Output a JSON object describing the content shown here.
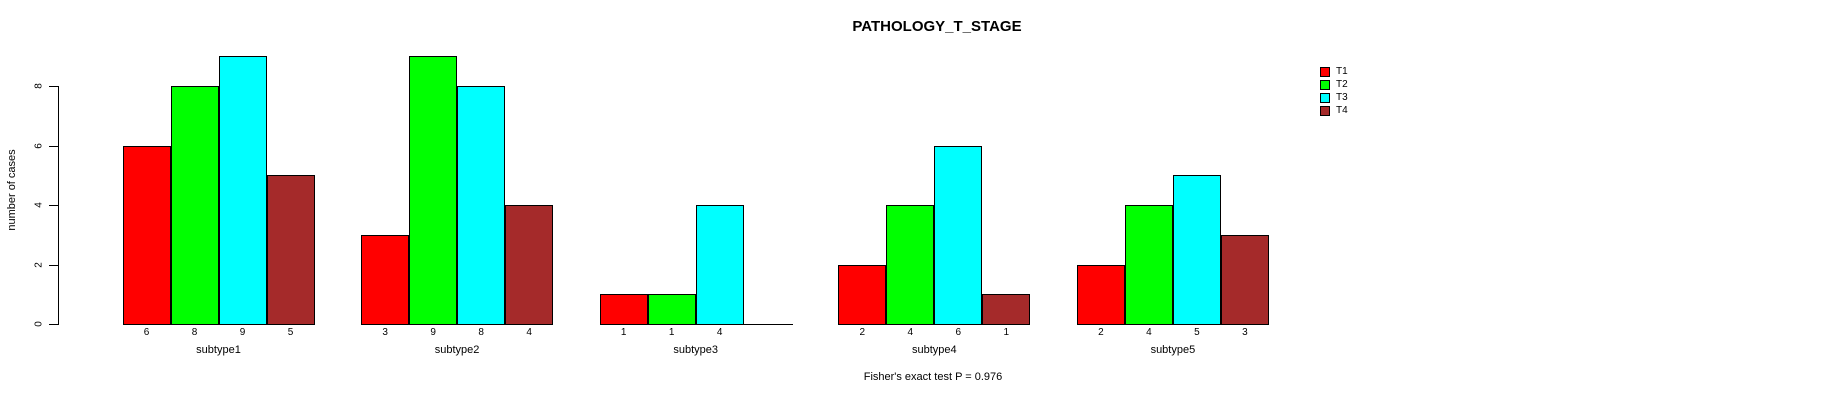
{
  "title": "PATHOLOGY_T_STAGE",
  "y_axis": {
    "label": "number of cases",
    "ticks": [
      0,
      2,
      4,
      6,
      8
    ]
  },
  "caption": "Fisher's exact test P = 0.976",
  "chart_data": {
    "type": "bar",
    "title": "PATHOLOGY_T_STAGE",
    "xlabel": "",
    "ylabel": "number of cases",
    "ylim": [
      0,
      9
    ],
    "yticks": [
      0,
      2,
      4,
      6,
      8
    ],
    "grid": false,
    "legend_position": "top-right-outside",
    "categories": [
      "subtype1",
      "subtype2",
      "subtype3",
      "subtype4",
      "subtype5"
    ],
    "series": [
      {
        "name": "T1",
        "color": "#ff0000",
        "values": [
          6,
          3,
          1,
          2,
          2
        ]
      },
      {
        "name": "T2",
        "color": "#00ff00",
        "values": [
          8,
          9,
          1,
          4,
          4
        ]
      },
      {
        "name": "T3",
        "color": "#00ffff",
        "values": [
          9,
          8,
          4,
          6,
          5
        ]
      },
      {
        "name": "T4",
        "color": "#a52a2a",
        "values": [
          5,
          4,
          0,
          1,
          3
        ]
      }
    ],
    "bar_value_labels": [
      [
        "6",
        "8",
        "9",
        "5"
      ],
      [
        "3",
        "9",
        "8",
        "4"
      ],
      [
        "1",
        "1",
        "4",
        ""
      ],
      [
        "2",
        "4",
        "6",
        "1"
      ],
      [
        "2",
        "4",
        "5",
        "3"
      ]
    ],
    "annotation": "Fisher's exact test P = 0.976"
  }
}
